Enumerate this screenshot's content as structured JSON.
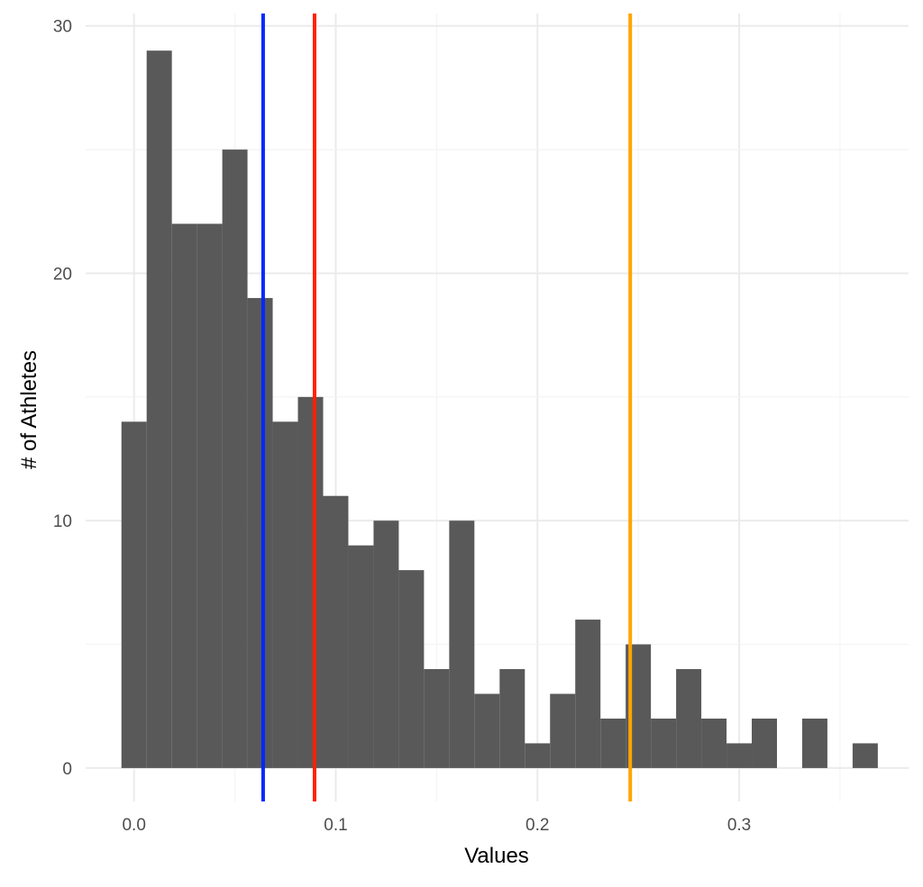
{
  "chart_data": {
    "type": "bar",
    "subtype": "histogram",
    "title": "",
    "xlabel": "Values",
    "ylabel": "# of Athletes",
    "bin_width": 0.0125,
    "bin_centers": [
      0,
      0.0125,
      0.025,
      0.0375,
      0.05,
      0.0625,
      0.075,
      0.0875,
      0.1,
      0.1125,
      0.125,
      0.1375,
      0.15,
      0.1625,
      0.175,
      0.1875,
      0.2,
      0.2125,
      0.225,
      0.2375,
      0.25,
      0.2625,
      0.275,
      0.2875,
      0.3,
      0.3125,
      0.325,
      0.3375,
      0.35,
      0.3625
    ],
    "counts": [
      14,
      29,
      22,
      22,
      25,
      19,
      14,
      15,
      11,
      9,
      10,
      8,
      4,
      10,
      3,
      4,
      1,
      3,
      6,
      2,
      5,
      2,
      4,
      2,
      1,
      2,
      0,
      2,
      0,
      1
    ],
    "xlim": [
      -0.024,
      0.384
    ],
    "ylim": [
      -1.35,
      30.5
    ],
    "x_ticks": [
      "0.0",
      "0.1",
      "0.2",
      "0.3"
    ],
    "x_tick_values": [
      0,
      0.1,
      0.2,
      0.3
    ],
    "y_ticks": [
      "0",
      "10",
      "20",
      "30"
    ],
    "y_tick_values": [
      0,
      10,
      20,
      30
    ],
    "grid": true,
    "bar_color": "#595959",
    "vlines": [
      {
        "x": 0.064,
        "color": "#0029ff"
      },
      {
        "x": 0.0895,
        "color": "#ff2200"
      },
      {
        "x": 0.246,
        "color": "#ffa500"
      }
    ]
  }
}
